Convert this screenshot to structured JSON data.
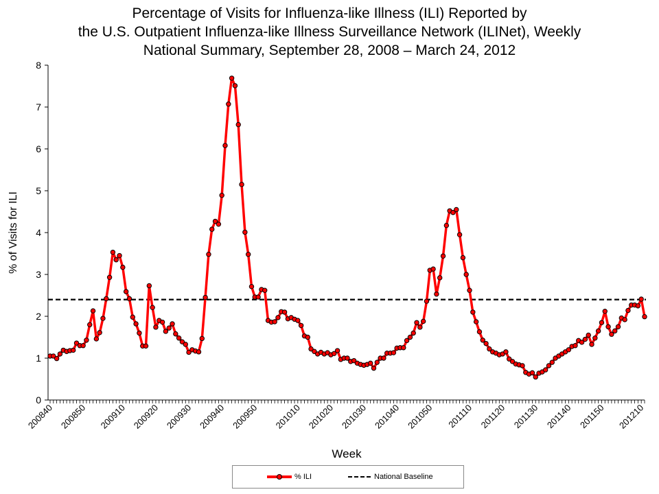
{
  "chart_data": {
    "type": "line",
    "title_lines": [
      "Percentage of Visits for Influenza-like Illness (ILI) Reported by",
      "the U.S. Outpatient Influenza-like Illness Surveillance Network (ILINet), Weekly",
      "National Summary, September 28, 2008 – March 24, 2012"
    ],
    "xlabel": "Week",
    "ylabel": "% of Visits for ILI",
    "ylim": [
      0,
      8
    ],
    "yticks": [
      "0",
      "1",
      "2",
      "3",
      "4",
      "5",
      "6",
      "7",
      "8"
    ],
    "xtick_labels": [
      "200840",
      "200850",
      "200910",
      "200920",
      "200930",
      "200940",
      "200950",
      "201010",
      "201020",
      "201030",
      "201040",
      "201050",
      "201110",
      "201120",
      "201130",
      "201140",
      "201150",
      "201210"
    ],
    "x": [
      "200840",
      "200841",
      "200842",
      "200843",
      "200844",
      "200845",
      "200846",
      "200847",
      "200848",
      "200849",
      "200850",
      "200851",
      "200852",
      "200901",
      "200902",
      "200903",
      "200904",
      "200905",
      "200906",
      "200907",
      "200908",
      "200909",
      "200910",
      "200911",
      "200912",
      "200913",
      "200914",
      "200915",
      "200916",
      "200917",
      "200918",
      "200919",
      "200920",
      "200921",
      "200922",
      "200923",
      "200924",
      "200925",
      "200926",
      "200927",
      "200928",
      "200929",
      "200930",
      "200931",
      "200932",
      "200933",
      "200934",
      "200935",
      "200936",
      "200937",
      "200938",
      "200939",
      "200940",
      "200941",
      "200942",
      "200943",
      "200944",
      "200945",
      "200946",
      "200947",
      "200948",
      "200949",
      "200950",
      "200951",
      "200952",
      "200953",
      "201001",
      "201002",
      "201003",
      "201004",
      "201005",
      "201006",
      "201007",
      "201008",
      "201009",
      "201010",
      "201011",
      "201012",
      "201013",
      "201014",
      "201015",
      "201016",
      "201017",
      "201018",
      "201019",
      "201020",
      "201021",
      "201022",
      "201023",
      "201024",
      "201025",
      "201026",
      "201027",
      "201028",
      "201029",
      "201030",
      "201031",
      "201032",
      "201033",
      "201034",
      "201035",
      "201036",
      "201037",
      "201038",
      "201039",
      "201040",
      "201041",
      "201042",
      "201043",
      "201044",
      "201045",
      "201046",
      "201047",
      "201048",
      "201049",
      "201050",
      "201051",
      "201052",
      "201101",
      "201102",
      "201103",
      "201104",
      "201105",
      "201106",
      "201107",
      "201108",
      "201109",
      "201110",
      "201111",
      "201112",
      "201113",
      "201114",
      "201115",
      "201116",
      "201117",
      "201118",
      "201119",
      "201120",
      "201121",
      "201122",
      "201123",
      "201124",
      "201125",
      "201126",
      "201127",
      "201128",
      "201129",
      "201130",
      "201131",
      "201132",
      "201133",
      "201134",
      "201135",
      "201136",
      "201137",
      "201138",
      "201139",
      "201140",
      "201141",
      "201142",
      "201143",
      "201144",
      "201145",
      "201146",
      "201147",
      "201148",
      "201149",
      "201150",
      "201151",
      "201152",
      "201201",
      "201202",
      "201203",
      "201204",
      "201205",
      "201206",
      "201207",
      "201208",
      "201209",
      "201210",
      "201211"
    ],
    "series": [
      {
        "name": "% ILI",
        "color": "#ff0000",
        "marker_color": "#ff0000",
        "marker_edge": "#000000",
        "values": [
          1.05,
          1.05,
          0.99,
          1.1,
          1.19,
          1.16,
          1.18,
          1.19,
          1.36,
          1.3,
          1.3,
          1.43,
          1.8,
          2.13,
          1.46,
          1.61,
          1.95,
          2.42,
          2.93,
          3.53,
          3.35,
          3.45,
          3.17,
          2.59,
          2.42,
          1.98,
          1.82,
          1.6,
          1.29,
          1.29,
          2.73,
          2.21,
          1.74,
          1.9,
          1.86,
          1.64,
          1.72,
          1.82,
          1.58,
          1.48,
          1.39,
          1.33,
          1.14,
          1.2,
          1.17,
          1.15,
          1.47,
          2.45,
          3.48,
          4.08,
          4.27,
          4.2,
          4.89,
          6.08,
          7.07,
          7.69,
          7.51,
          6.58,
          5.15,
          4.01,
          3.48,
          2.71,
          2.46,
          2.46,
          2.64,
          2.62,
          1.9,
          1.86,
          1.87,
          1.97,
          2.11,
          2.1,
          1.94,
          1.97,
          1.93,
          1.9,
          1.78,
          1.53,
          1.5,
          1.22,
          1.16,
          1.1,
          1.14,
          1.1,
          1.13,
          1.08,
          1.11,
          1.18,
          0.97,
          1.0,
          1.0,
          0.92,
          0.94,
          0.88,
          0.85,
          0.83,
          0.85,
          0.88,
          0.76,
          0.9,
          1.0,
          1.0,
          1.12,
          1.12,
          1.13,
          1.24,
          1.25,
          1.25,
          1.42,
          1.5,
          1.6,
          1.85,
          1.74,
          1.88,
          2.36,
          3.1,
          3.13,
          2.53,
          2.92,
          3.44,
          4.17,
          4.52,
          4.48,
          4.55,
          3.95,
          3.4,
          3.0,
          2.62,
          2.1,
          1.87,
          1.63,
          1.43,
          1.35,
          1.22,
          1.15,
          1.12,
          1.08,
          1.1,
          1.15,
          0.98,
          0.92,
          0.86,
          0.84,
          0.82,
          0.66,
          0.62,
          0.65,
          0.55,
          0.64,
          0.67,
          0.72,
          0.82,
          0.9,
          1.0,
          1.05,
          1.1,
          1.15,
          1.2,
          1.28,
          1.3,
          1.42,
          1.38,
          1.45,
          1.55,
          1.33,
          1.48,
          1.65,
          1.85,
          2.12,
          1.75,
          1.57,
          1.65,
          1.75,
          1.96,
          1.92,
          2.14,
          2.27,
          2.27,
          2.25,
          2.41,
          1.99
        ]
      },
      {
        "name": "National Baseline",
        "color": "#000000",
        "style": "dashed",
        "value": 2.4
      }
    ],
    "grid": false,
    "legend_placement": "bottom"
  }
}
